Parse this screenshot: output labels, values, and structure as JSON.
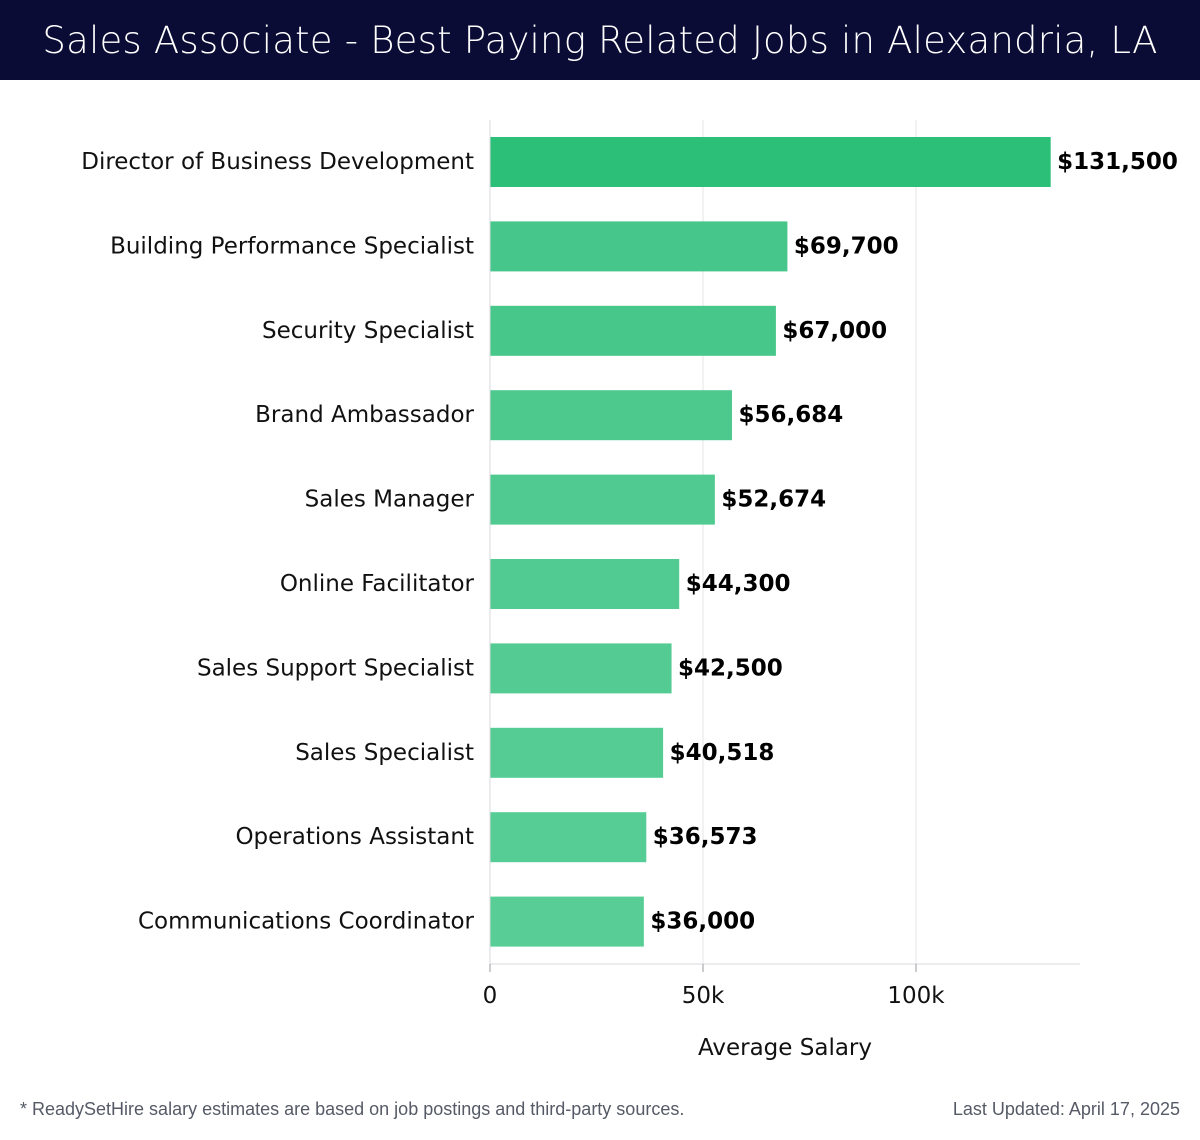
{
  "header": {
    "title": "Sales Associate - Best Paying Related Jobs in Alexandria, LA"
  },
  "chart_data": {
    "type": "bar",
    "orientation": "horizontal",
    "title": "Sales Associate - Best Paying Related Jobs in Alexandria, LA",
    "categories": [
      "Director of Business Development",
      "Building Performance Specialist",
      "Security Specialist",
      "Brand Ambassador",
      "Sales Manager",
      "Online Facilitator",
      "Sales Support Specialist",
      "Sales Specialist",
      "Operations Assistant",
      "Communications Coordinator"
    ],
    "values": [
      131500,
      69700,
      67000,
      56684,
      52674,
      44300,
      42500,
      40518,
      36573,
      36000
    ],
    "value_labels": [
      "$131,500",
      "$69,700",
      "$67,000",
      "$56,684",
      "$52,674",
      "$44,300",
      "$42,500",
      "$40,518",
      "$36,573",
      "$36,000"
    ],
    "xlabel": "Average Salary",
    "ylabel": "",
    "xlim": [
      0,
      138500
    ],
    "xticks": [
      0,
      50000,
      100000
    ],
    "xtick_labels": [
      "0",
      "50k",
      "100k"
    ],
    "grid": true,
    "bar_colors": [
      "#2cbf78",
      "#46c68a",
      "#48c78b",
      "#4dc98e",
      "#50ca90",
      "#52cb92",
      "#53cb93",
      "#55cc94",
      "#56cd95",
      "#58ce96"
    ]
  },
  "footer": {
    "note": "* ReadySetHire salary estimates are based on job postings and third-party sources.",
    "updated": "Last Updated: April 17, 2025"
  }
}
